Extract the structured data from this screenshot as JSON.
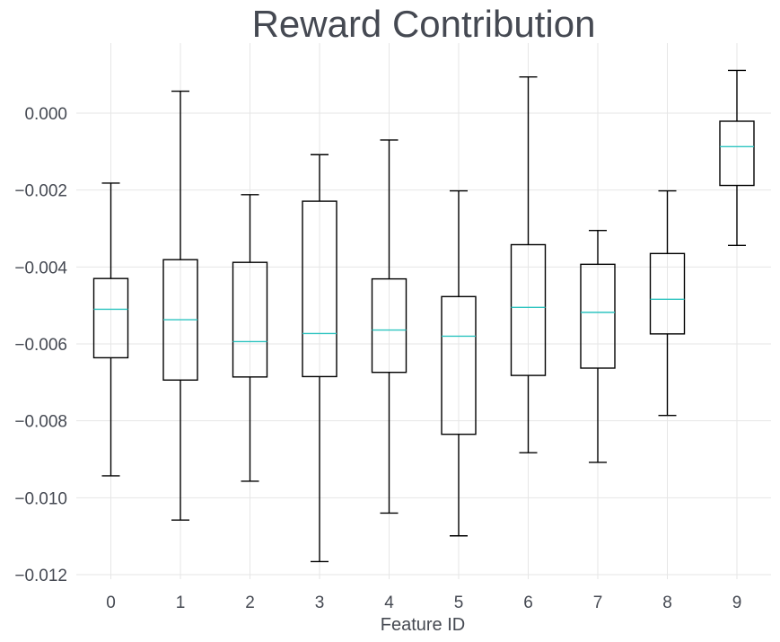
{
  "chart_data": {
    "type": "box",
    "title": "Reward Contribution",
    "xlabel": "Feature ID",
    "ylabel": "",
    "ylim": [
      -0.0123,
      0.0018
    ],
    "yticks": [
      0.0,
      -0.002,
      -0.004,
      -0.006,
      -0.008,
      -0.01,
      -0.012
    ],
    "ytick_labels": [
      "0.000",
      "−0.002",
      "−0.004",
      "−0.006",
      "−0.008",
      "−0.010",
      "−0.012"
    ],
    "grid": true,
    "categories": [
      "0",
      "1",
      "2",
      "3",
      "4",
      "5",
      "6",
      "7",
      "8",
      "9"
    ],
    "boxes": [
      {
        "whisker_low": -0.00943,
        "q1": -0.00636,
        "median": -0.0051,
        "q3": -0.0043,
        "whisker_high": -0.00182
      },
      {
        "whisker_low": -0.01058,
        "q1": -0.00694,
        "median": -0.00537,
        "q3": -0.00381,
        "whisker_high": 0.00057
      },
      {
        "whisker_low": -0.00957,
        "q1": -0.00686,
        "median": -0.00594,
        "q3": -0.00388,
        "whisker_high": -0.00212
      },
      {
        "whisker_low": -0.01166,
        "q1": -0.00685,
        "median": -0.00573,
        "q3": -0.00229,
        "whisker_high": -0.00108
      },
      {
        "whisker_low": -0.0104,
        "q1": -0.00674,
        "median": -0.00564,
        "q3": -0.00431,
        "whisker_high": -0.0007
      },
      {
        "whisker_low": -0.01099,
        "q1": -0.00835,
        "median": -0.0058,
        "q3": -0.00477,
        "whisker_high": -0.00202
      },
      {
        "whisker_low": -0.00883,
        "q1": -0.00682,
        "median": -0.00505,
        "q3": -0.00342,
        "whisker_high": 0.00094
      },
      {
        "whisker_low": -0.00908,
        "q1": -0.00663,
        "median": -0.00518,
        "q3": -0.00393,
        "whisker_high": -0.00305
      },
      {
        "whisker_low": -0.00786,
        "q1": -0.00574,
        "median": -0.00484,
        "q3": -0.00365,
        "whisker_high": -0.00202
      },
      {
        "whisker_low": -0.00344,
        "q1": -0.00188,
        "median": -0.00087,
        "q3": -0.00021,
        "whisker_high": 0.00111
      }
    ],
    "colors": {
      "box": "#000000",
      "median": "#2ec4c0",
      "grid": "#e6e6e6",
      "text": "#454952"
    }
  }
}
